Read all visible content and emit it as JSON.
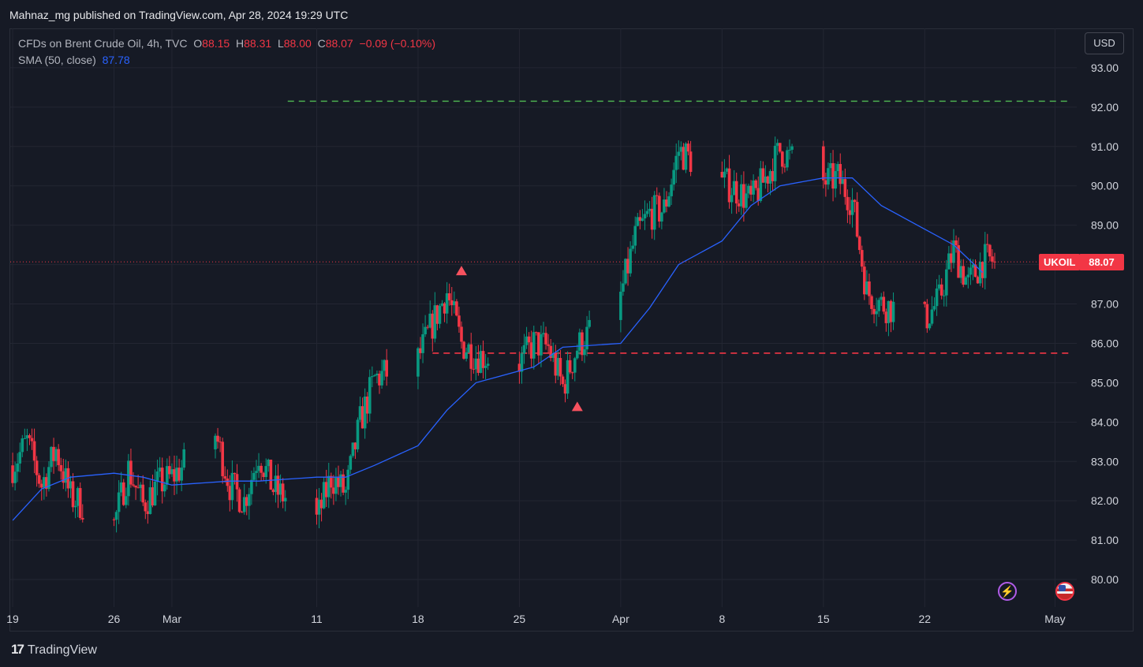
{
  "header": {
    "published_line": "Mahnaz_mg published on TradingView.com, Apr 28, 2024 19:29 UTC"
  },
  "legend": {
    "instrument": "CFDs on Brent Crude Oil, 4h, TVC",
    "open_label": "O",
    "open": "88.15",
    "high_label": "H",
    "high": "88.31",
    "low_label": "L",
    "low": "88.00",
    "close_label": "C",
    "close": "88.07",
    "change": "−0.09 (−0.10%)",
    "sma_label": "SMA (50, close)",
    "sma_value": "87.78"
  },
  "currency_button": "USD",
  "price_tag": {
    "symbol": "UKOIL",
    "price": "88.07"
  },
  "footer": {
    "brand_logo": "17",
    "brand": "TradingView"
  },
  "colors": {
    "background": "#161a25",
    "up": "#089981",
    "down": "#f23645",
    "sma": "#2962ff",
    "resistance": "#4caf50",
    "support": "#f23645",
    "grid": "#232632"
  },
  "icons": [
    "lightning-icon",
    "us-flag-icon"
  ],
  "chart_data": {
    "type": "candlestick",
    "title": "CFDs on Brent Crude Oil, 4h, TVC",
    "timeframe": "4h",
    "y_range": [
      79.3,
      94.0
    ],
    "y_ticks": [
      "93.00",
      "92.00",
      "91.00",
      "90.00",
      "89.00",
      "88.00",
      "87.00",
      "86.00",
      "85.00",
      "84.00",
      "83.00",
      "82.00",
      "81.00",
      "80.00"
    ],
    "x_labels": [
      {
        "label": "19",
        "date": "2024-02-19"
      },
      {
        "label": "26",
        "date": "2024-02-26"
      },
      {
        "label": "Mar",
        "date": "2024-03-01"
      },
      {
        "label": "11",
        "date": "2024-03-11"
      },
      {
        "label": "18",
        "date": "2024-03-18"
      },
      {
        "label": "25",
        "date": "2024-03-25"
      },
      {
        "label": "Apr",
        "date": "2024-04-01"
      },
      {
        "label": "8",
        "date": "2024-04-08"
      },
      {
        "label": "15",
        "date": "2024-04-15"
      },
      {
        "label": "22",
        "date": "2024-04-22"
      },
      {
        "label": "May",
        "date": "2024-05-01"
      }
    ],
    "price_path": [
      [
        "2024-02-19",
        82.9
      ],
      [
        "2024-02-20",
        83.5
      ],
      [
        "2024-02-21",
        82.4
      ],
      [
        "2024-02-22",
        83.3
      ],
      [
        "2024-02-23",
        82.1
      ],
      [
        "2024-02-26",
        81.4
      ],
      [
        "2024-02-27",
        82.8
      ],
      [
        "2024-02-28",
        81.9
      ],
      [
        "2024-02-29",
        82.4
      ],
      [
        "2024-03-01",
        82.6
      ],
      [
        "2024-03-04",
        83.7
      ],
      [
        "2024-03-05",
        82.4
      ],
      [
        "2024-03-06",
        82.0
      ],
      [
        "2024-03-07",
        83.2
      ],
      [
        "2024-03-08",
        82.3
      ],
      [
        "2024-03-11",
        81.5
      ],
      [
        "2024-03-12",
        82.6
      ],
      [
        "2024-03-13",
        82.2
      ],
      [
        "2024-03-14",
        84.0
      ],
      [
        "2024-03-15",
        85.1
      ],
      [
        "2024-03-18",
        85.6
      ],
      [
        "2024-03-19",
        86.5
      ],
      [
        "2024-03-20",
        87.3
      ],
      [
        "2024-03-21",
        86.0
      ],
      [
        "2024-03-22",
        85.7
      ],
      [
        "2024-03-25",
        85.5
      ],
      [
        "2024-03-26",
        86.0
      ],
      [
        "2024-03-27",
        85.9
      ],
      [
        "2024-03-28",
        84.9
      ],
      [
        "2024-03-29",
        85.9
      ],
      [
        "2024-04-01",
        87.2
      ],
      [
        "2024-04-02",
        88.7
      ],
      [
        "2024-04-03",
        89.3
      ],
      [
        "2024-04-04",
        89.4
      ],
      [
        "2024-04-05",
        90.9
      ],
      [
        "2024-04-08",
        90.1
      ],
      [
        "2024-04-09",
        89.9
      ],
      [
        "2024-04-10",
        89.6
      ],
      [
        "2024-04-11",
        90.2
      ],
      [
        "2024-04-12",
        90.9
      ],
      [
        "2024-04-15",
        90.1
      ],
      [
        "2024-04-16",
        90.2
      ],
      [
        "2024-04-17",
        89.6
      ],
      [
        "2024-04-18",
        87.3
      ],
      [
        "2024-04-19",
        87.0
      ],
      [
        "2024-04-22",
        86.6
      ],
      [
        "2024-04-23",
        87.1
      ],
      [
        "2024-04-24",
        88.4
      ],
      [
        "2024-04-25",
        87.5
      ],
      [
        "2024-04-26",
        88.1
      ]
    ],
    "last_close": 88.07,
    "sma": {
      "name": "SMA (50, close)",
      "last": 87.78,
      "path": [
        [
          "2024-02-19",
          81.5
        ],
        [
          "2024-02-21",
          82.3
        ],
        [
          "2024-02-23",
          82.6
        ],
        [
          "2024-02-26",
          82.7
        ],
        [
          "2024-02-28",
          82.6
        ],
        [
          "2024-03-01",
          82.4
        ],
        [
          "2024-03-05",
          82.5
        ],
        [
          "2024-03-07",
          82.5
        ],
        [
          "2024-03-11",
          82.6
        ],
        [
          "2024-03-13",
          82.6
        ],
        [
          "2024-03-15",
          82.9
        ],
        [
          "2024-03-18",
          83.4
        ],
        [
          "2024-03-20",
          84.3
        ],
        [
          "2024-03-22",
          85.0
        ],
        [
          "2024-03-26",
          85.4
        ],
        [
          "2024-03-28",
          85.9
        ],
        [
          "2024-04-01",
          86.0
        ],
        [
          "2024-04-03",
          86.9
        ],
        [
          "2024-04-05",
          88.0
        ],
        [
          "2024-04-08",
          88.6
        ],
        [
          "2024-04-10",
          89.5
        ],
        [
          "2024-04-12",
          90.0
        ],
        [
          "2024-04-15",
          90.2
        ],
        [
          "2024-04-17",
          90.2
        ],
        [
          "2024-04-19",
          89.5
        ],
        [
          "2024-04-22",
          88.9
        ],
        [
          "2024-04-24",
          88.5
        ],
        [
          "2024-04-26",
          87.8
        ]
      ]
    },
    "levels": [
      {
        "kind": "resistance",
        "price": 92.15,
        "from": "2024-03-09",
        "to": "2024-05-02",
        "style": "dashed"
      },
      {
        "kind": "support",
        "price": 85.75,
        "from": "2024-03-19",
        "to": "2024-05-02",
        "style": "dashed"
      }
    ],
    "markers": [
      {
        "date": "2024-03-21",
        "price": 87.85,
        "shape": "triangle-up"
      },
      {
        "date": "2024-03-29",
        "price": 84.4,
        "shape": "triangle-up"
      }
    ],
    "grid": true
  }
}
